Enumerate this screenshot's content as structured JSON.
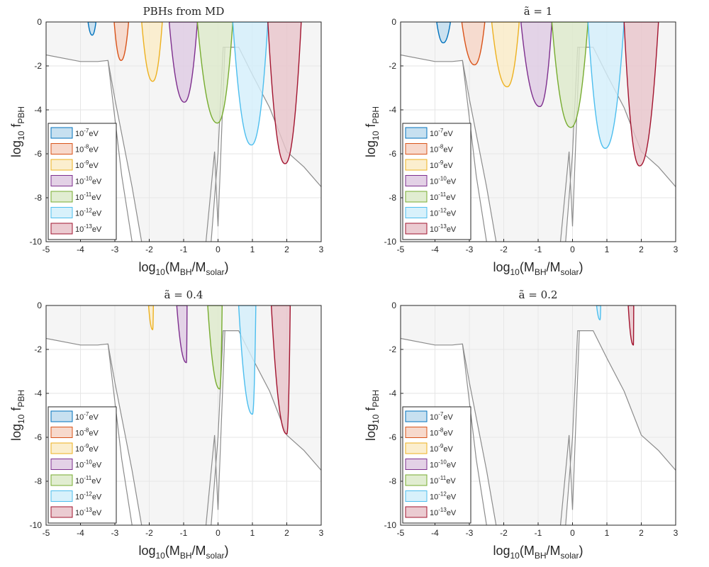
{
  "chart_data": [
    {
      "type": "area",
      "title": "PBHs from MD",
      "xlabel": "log10(MBH/Msolar)",
      "ylabel": "log10 fPBH",
      "xlim": [
        -5,
        3
      ],
      "ylim": [
        -10,
        0
      ],
      "xticks": [
        "-5",
        "-4",
        "-3",
        "-2",
        "-1",
        "0",
        "1",
        "2",
        "3"
      ],
      "yticks": [
        "0",
        "-2",
        "-4",
        "-6",
        "-8",
        "-10"
      ],
      "legend": [
        "10-7eV",
        "10-8eV",
        "10-9eV",
        "10-10eV",
        "10-11eV",
        "10-12eV",
        "10-13eV"
      ],
      "legend_position": "bottom-left",
      "series": [
        {
          "name": "10-7eV",
          "color": "#0072BD",
          "xl": -3.78,
          "xr": -3.55,
          "ymin": -0.6,
          "xmin": -3.66
        },
        {
          "name": "10-8eV",
          "color": "#D95319",
          "xl": -3.02,
          "xr": -2.6,
          "ymin": -1.75,
          "xmin": -2.82
        },
        {
          "name": "10-9eV",
          "color": "#EDB120",
          "xl": -2.22,
          "xr": -1.62,
          "ymin": -2.7,
          "xmin": -1.9
        },
        {
          "name": "10-10eV",
          "color": "#7E2F8E",
          "xl": -1.42,
          "xr": -0.6,
          "ymin": -3.65,
          "xmin": -0.98
        },
        {
          "name": "10-11eV",
          "color": "#77AC30",
          "xl": -0.6,
          "xr": 0.43,
          "ymin": -4.6,
          "xmin": -0.02
        },
        {
          "name": "10-12eV",
          "color": "#4DBEEE",
          "xl": 0.43,
          "xr": 1.45,
          "ymin": -5.6,
          "xmin": 0.97
        },
        {
          "name": "10-13eV",
          "color": "#A2142F",
          "xl": 1.45,
          "xr": 2.42,
          "ymin": -6.45,
          "xmin": 1.95
        }
      ]
    },
    {
      "type": "area",
      "title": "ã = 1",
      "xlabel": "log10(MBH/Msolar)",
      "ylabel": "log10 fPBH",
      "xlim": [
        -5,
        3
      ],
      "ylim": [
        -10,
        0
      ],
      "xticks": [
        "-5",
        "-4",
        "-3",
        "-2",
        "-1",
        "0",
        "1",
        "2",
        "3"
      ],
      "yticks": [
        "0",
        "-2",
        "-4",
        "-6",
        "-8",
        "-10"
      ],
      "legend": [
        "10-7eV",
        "10-8eV",
        "10-9eV",
        "10-10eV",
        "10-11eV",
        "10-12eV",
        "10-13eV"
      ],
      "legend_position": "bottom-left",
      "series": [
        {
          "name": "10-7eV",
          "color": "#0072BD",
          "xl": -3.95,
          "xr": -3.55,
          "ymin": -0.95,
          "xmin": -3.76
        },
        {
          "name": "10-8eV",
          "color": "#D95319",
          "xl": -3.22,
          "xr": -2.55,
          "ymin": -1.95,
          "xmin": -2.85
        },
        {
          "name": "10-9eV",
          "color": "#EDB120",
          "xl": -2.35,
          "xr": -1.55,
          "ymin": -2.95,
          "xmin": -1.9
        },
        {
          "name": "10-10eV",
          "color": "#7E2F8E",
          "xl": -1.5,
          "xr": -0.6,
          "ymin": -3.85,
          "xmin": -0.95
        },
        {
          "name": "10-11eV",
          "color": "#77AC30",
          "xl": -0.6,
          "xr": 0.45,
          "ymin": -4.8,
          "xmin": -0.05
        },
        {
          "name": "10-12eV",
          "color": "#4DBEEE",
          "xl": 0.45,
          "xr": 1.5,
          "ymin": -5.75,
          "xmin": 0.95
        },
        {
          "name": "10-13eV",
          "color": "#A2142F",
          "xl": 1.5,
          "xr": 2.5,
          "ymin": -6.55,
          "xmin": 1.95
        }
      ]
    },
    {
      "type": "area",
      "title": "ã = 0.4",
      "xlabel": "log10(MBH/Msolar)",
      "ylabel": "log10 fPBH",
      "xlim": [
        -5,
        3
      ],
      "ylim": [
        -10,
        0
      ],
      "xticks": [
        "-5",
        "-4",
        "-3",
        "-2",
        "-1",
        "0",
        "1",
        "2",
        "3"
      ],
      "yticks": [
        "0",
        "-2",
        "-4",
        "-6",
        "-8",
        "-10"
      ],
      "legend": [
        "10-7eV",
        "10-8eV",
        "10-9eV",
        "10-10eV",
        "10-11eV",
        "10-12eV",
        "10-13eV"
      ],
      "legend_position": "bottom-left",
      "series": [
        {
          "name": "10-9eV",
          "color": "#EDB120",
          "xl": -2.02,
          "xr": -1.88,
          "ymin": -1.1,
          "xmin": -1.9
        },
        {
          "name": "10-10eV",
          "color": "#7E2F8E",
          "xl": -1.2,
          "xr": -0.9,
          "ymin": -2.6,
          "xmin": -0.92
        },
        {
          "name": "10-11eV",
          "color": "#77AC30",
          "xl": -0.3,
          "xr": 0.12,
          "ymin": -3.8,
          "xmin": 0.05
        },
        {
          "name": "10-12eV",
          "color": "#4DBEEE",
          "xl": 0.6,
          "xr": 1.1,
          "ymin": -4.95,
          "xmin": 1.0
        },
        {
          "name": "10-13eV",
          "color": "#A2142F",
          "xl": 1.55,
          "xr": 2.1,
          "ymin": -5.85,
          "xmin": 2.0
        }
      ]
    },
    {
      "type": "area",
      "title": "ã = 0.2",
      "xlabel": "log10(MBH/Msolar)",
      "ylabel": "log10 fPBH",
      "xlim": [
        -5,
        3
      ],
      "ylim": [
        -10,
        0
      ],
      "xticks": [
        "-5",
        "-4",
        "-3",
        "-2",
        "-1",
        "0",
        "1",
        "2",
        "3"
      ],
      "yticks": [
        "0",
        "-2",
        "-4",
        "-6",
        "-8",
        "-10"
      ],
      "legend": [
        "10-7eV",
        "10-8eV",
        "10-9eV",
        "10-10eV",
        "10-11eV",
        "10-12eV",
        "10-13eV"
      ],
      "legend_position": "bottom-left",
      "series": [
        {
          "name": "10-12eV",
          "color": "#4DBEEE",
          "xl": 0.7,
          "xr": 0.82,
          "ymin": -0.65,
          "xmin": 0.8
        },
        {
          "name": "10-13eV",
          "color": "#A2142F",
          "xl": 1.62,
          "xr": 1.78,
          "ymin": -1.8,
          "xmin": 1.77
        }
      ]
    }
  ],
  "constraint_curve": {
    "upper_x": [
      -5,
      -4,
      -3.5,
      -3.2,
      -3.0,
      -2.5,
      -2.0,
      -1.5,
      -1.0,
      -0.5,
      -0.2,
      0.0,
      0.15,
      0.2,
      0.6,
      1.0,
      1.5,
      2.0,
      2.5,
      3.0
    ],
    "upper_y": [
      -1.5,
      -1.8,
      -1.8,
      -1.75,
      -3.5,
      -7.5,
      -12,
      -12,
      -12,
      -12,
      -10,
      -6,
      -1.15,
      -1.15,
      -1.15,
      -2.4,
      -3.9,
      -5.9,
      -6.6,
      -7.5
    ],
    "lower_x": [
      -3.2,
      -2.8,
      -2.5
    ],
    "lower_y": [
      -1.75,
      -7,
      -10
    ],
    "spike_x": [
      -0.35,
      -0.1,
      0.0,
      0.2
    ],
    "spike_y": [
      -10,
      -5.9,
      -9.3,
      -1.15
    ]
  }
}
